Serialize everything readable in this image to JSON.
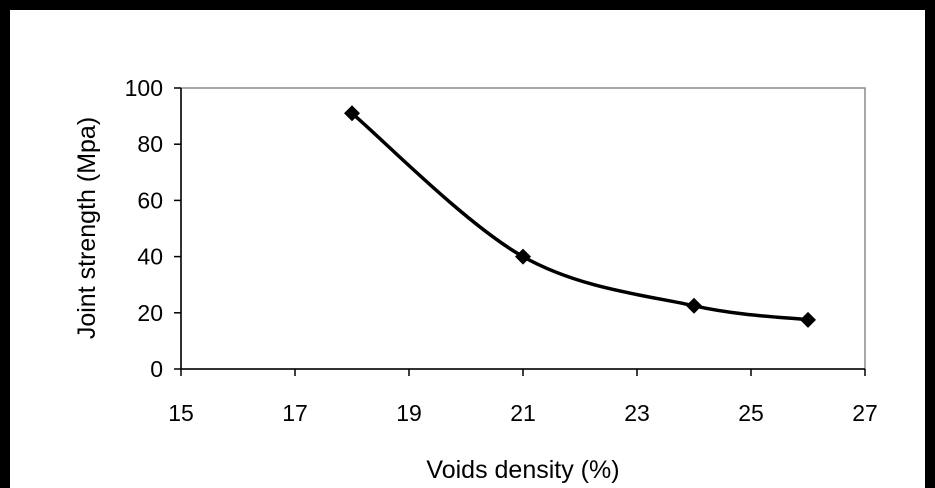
{
  "chart_data": {
    "type": "line",
    "title": "",
    "xlabel": "Voids density (%)",
    "ylabel": "Joint strength (Mpa)",
    "xlim": [
      15,
      27
    ],
    "ylim": [
      0,
      100
    ],
    "xticks": [
      "15",
      "17",
      "19",
      "21",
      "23",
      "25",
      "27"
    ],
    "yticks": [
      "0",
      "20",
      "40",
      "60",
      "80",
      "100"
    ],
    "grid": false,
    "legend": "none",
    "series": [
      {
        "x": [
          18,
          21,
          24,
          26
        ],
        "y": [
          91,
          40,
          22.5,
          17.5
        ],
        "marker": "diamond",
        "color": "#000000",
        "smoothed": true
      }
    ]
  }
}
